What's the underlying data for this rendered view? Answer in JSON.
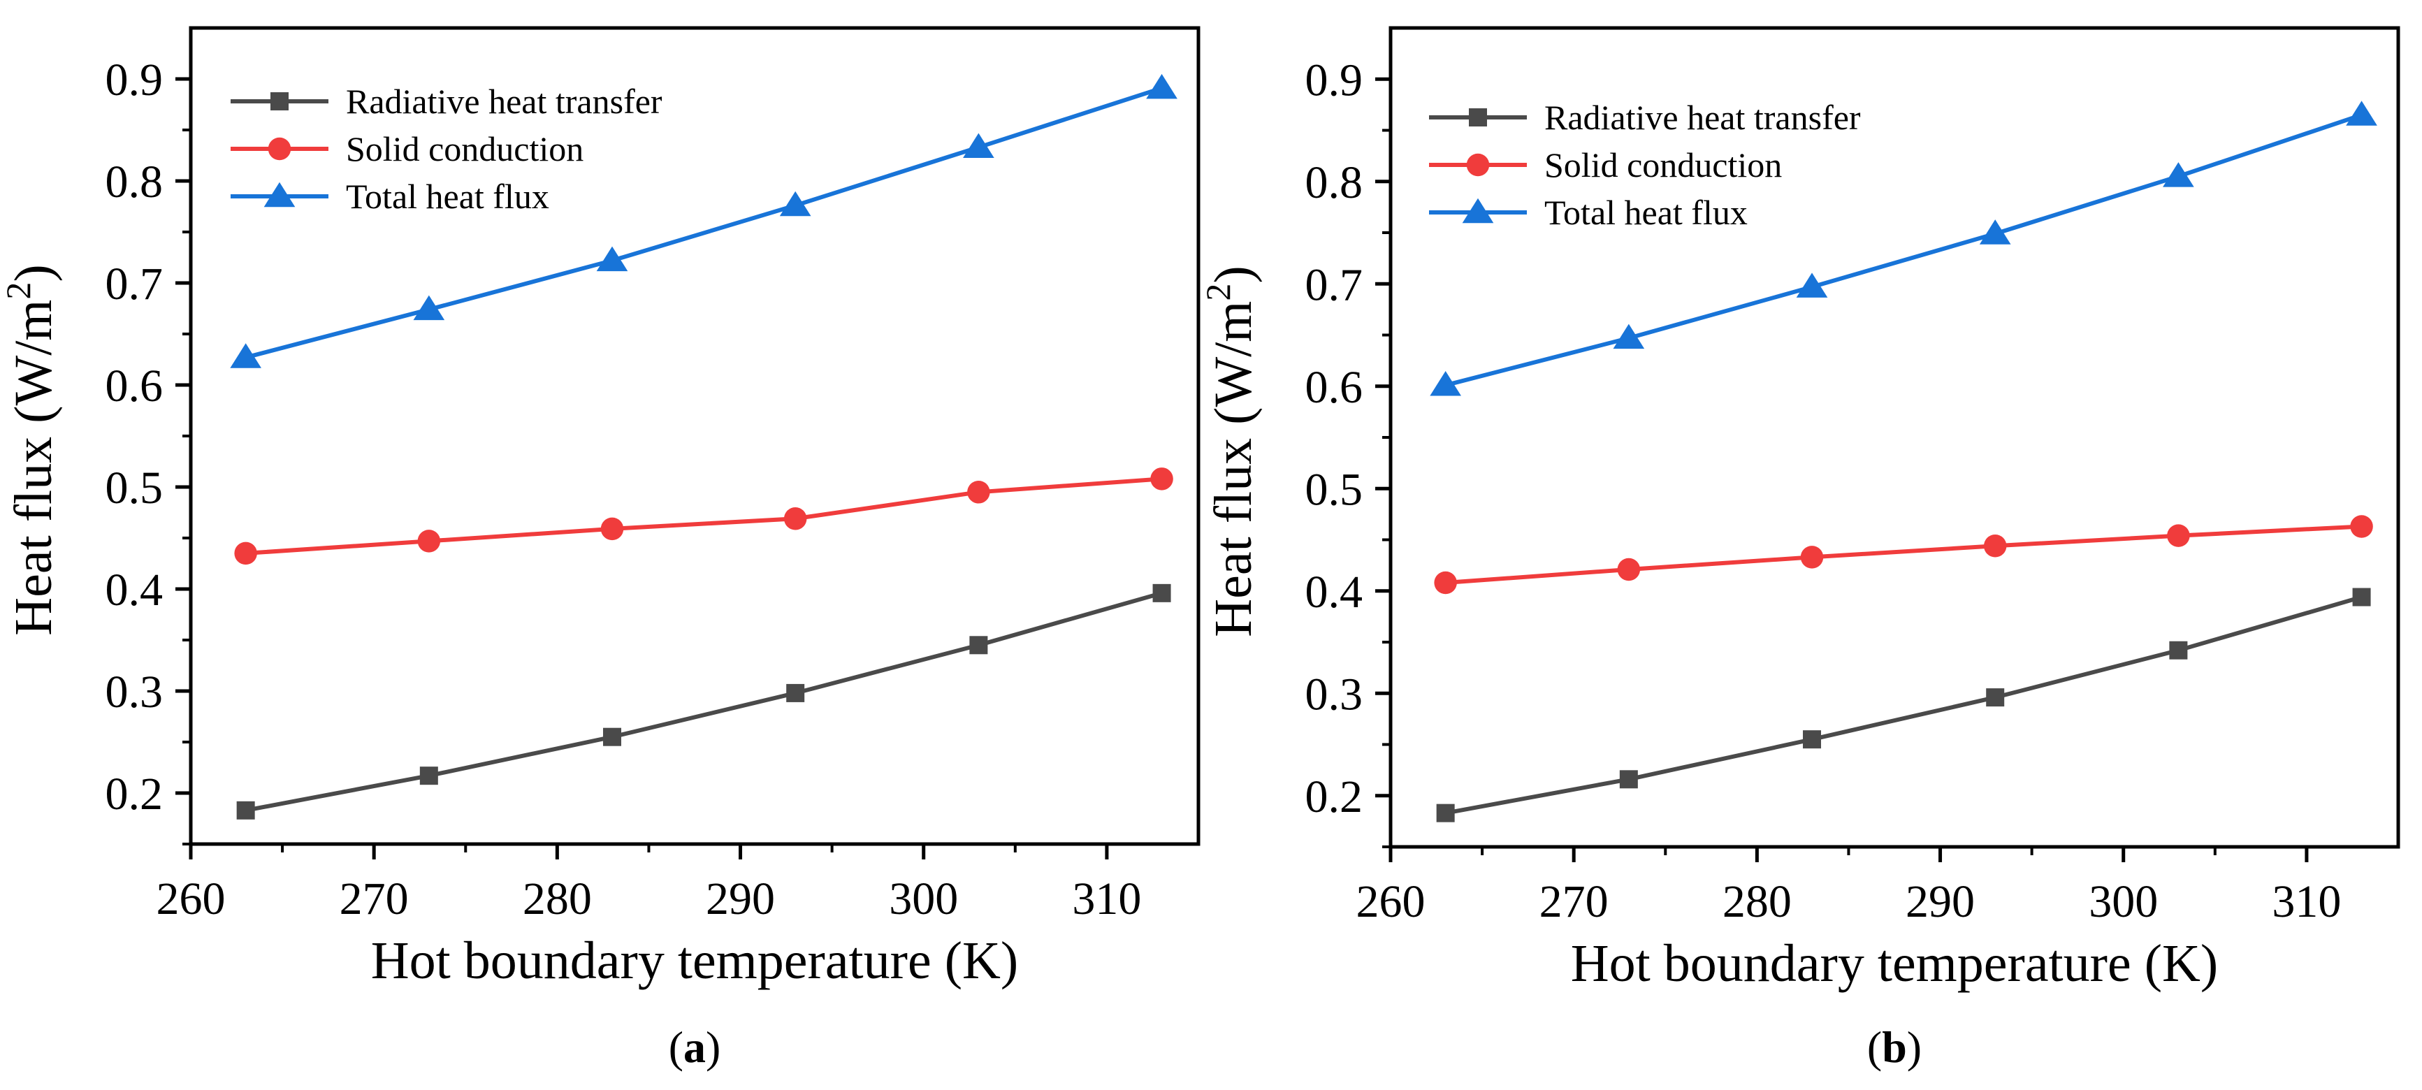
{
  "chart_data": [
    {
      "type": "line",
      "panel_label": {
        "prefix": "(",
        "letter": "a",
        "suffix": ")"
      },
      "xlabel": "Hot boundary temperature (K)",
      "ylabel": {
        "main": "Heat flux  (W/m",
        "sup": "2",
        "close": ")"
      },
      "x": [
        263,
        273,
        283,
        293,
        303,
        313
      ],
      "xlim": [
        260,
        315
      ],
      "ylim": [
        0.15,
        0.95
      ],
      "xticks": [
        260,
        270,
        280,
        290,
        300,
        310
      ],
      "xtick_labels": [
        "260",
        "270",
        "280",
        "290",
        "300",
        "310"
      ],
      "yticks": [
        0.2,
        0.3,
        0.4,
        0.5,
        0.6,
        0.7,
        0.8,
        0.9
      ],
      "ytick_labels": [
        "0.2",
        "0.3",
        "0.4",
        "0.5",
        "0.6",
        "0.7",
        "0.8",
        "0.9"
      ],
      "grid": false,
      "legend": "top-left",
      "series": [
        {
          "name": "Radiative heat transfer",
          "marker": "square",
          "color": "#4a4a4a",
          "values": [
            0.183,
            0.217,
            0.255,
            0.298,
            0.345,
            0.396
          ]
        },
        {
          "name": "Solid conduction",
          "marker": "circle",
          "color": "#f03c3c",
          "values": [
            0.435,
            0.447,
            0.459,
            0.469,
            0.495,
            0.508
          ]
        },
        {
          "name": "Total heat flux",
          "marker": "triangle",
          "color": "#1874d8",
          "values": [
            0.627,
            0.674,
            0.722,
            0.776,
            0.833,
            0.891
          ]
        }
      ]
    },
    {
      "type": "line",
      "panel_label": {
        "prefix": "(",
        "letter": "b",
        "suffix": ")"
      },
      "xlabel": "Hot boundary temperature (K)",
      "ylabel": {
        "main": "Heat flux  (W/m",
        "sup": "2",
        "close": ")"
      },
      "x": [
        263,
        273,
        283,
        293,
        303,
        313
      ],
      "xlim": [
        260,
        315
      ],
      "ylim": [
        0.15,
        0.95
      ],
      "xticks": [
        260,
        270,
        280,
        290,
        300,
        310
      ],
      "xtick_labels": [
        "260",
        "270",
        "280",
        "290",
        "300",
        "310"
      ],
      "yticks": [
        0.2,
        0.3,
        0.4,
        0.5,
        0.6,
        0.7,
        0.8,
        0.9
      ],
      "ytick_labels": [
        "0.2",
        "0.3",
        "0.4",
        "0.5",
        "0.6",
        "0.7",
        "0.8",
        "0.9"
      ],
      "grid": false,
      "legend": "top-left",
      "series": [
        {
          "name": "Radiative heat transfer",
          "marker": "square",
          "color": "#4a4a4a",
          "values": [
            0.183,
            0.216,
            0.255,
            0.296,
            0.342,
            0.394
          ]
        },
        {
          "name": "Solid conduction",
          "marker": "circle",
          "color": "#f03c3c",
          "values": [
            0.408,
            0.421,
            0.433,
            0.444,
            0.454,
            0.463
          ]
        },
        {
          "name": "Total heat flux",
          "marker": "triangle",
          "color": "#1874d8",
          "values": [
            0.601,
            0.647,
            0.697,
            0.749,
            0.805,
            0.865
          ]
        }
      ]
    }
  ]
}
